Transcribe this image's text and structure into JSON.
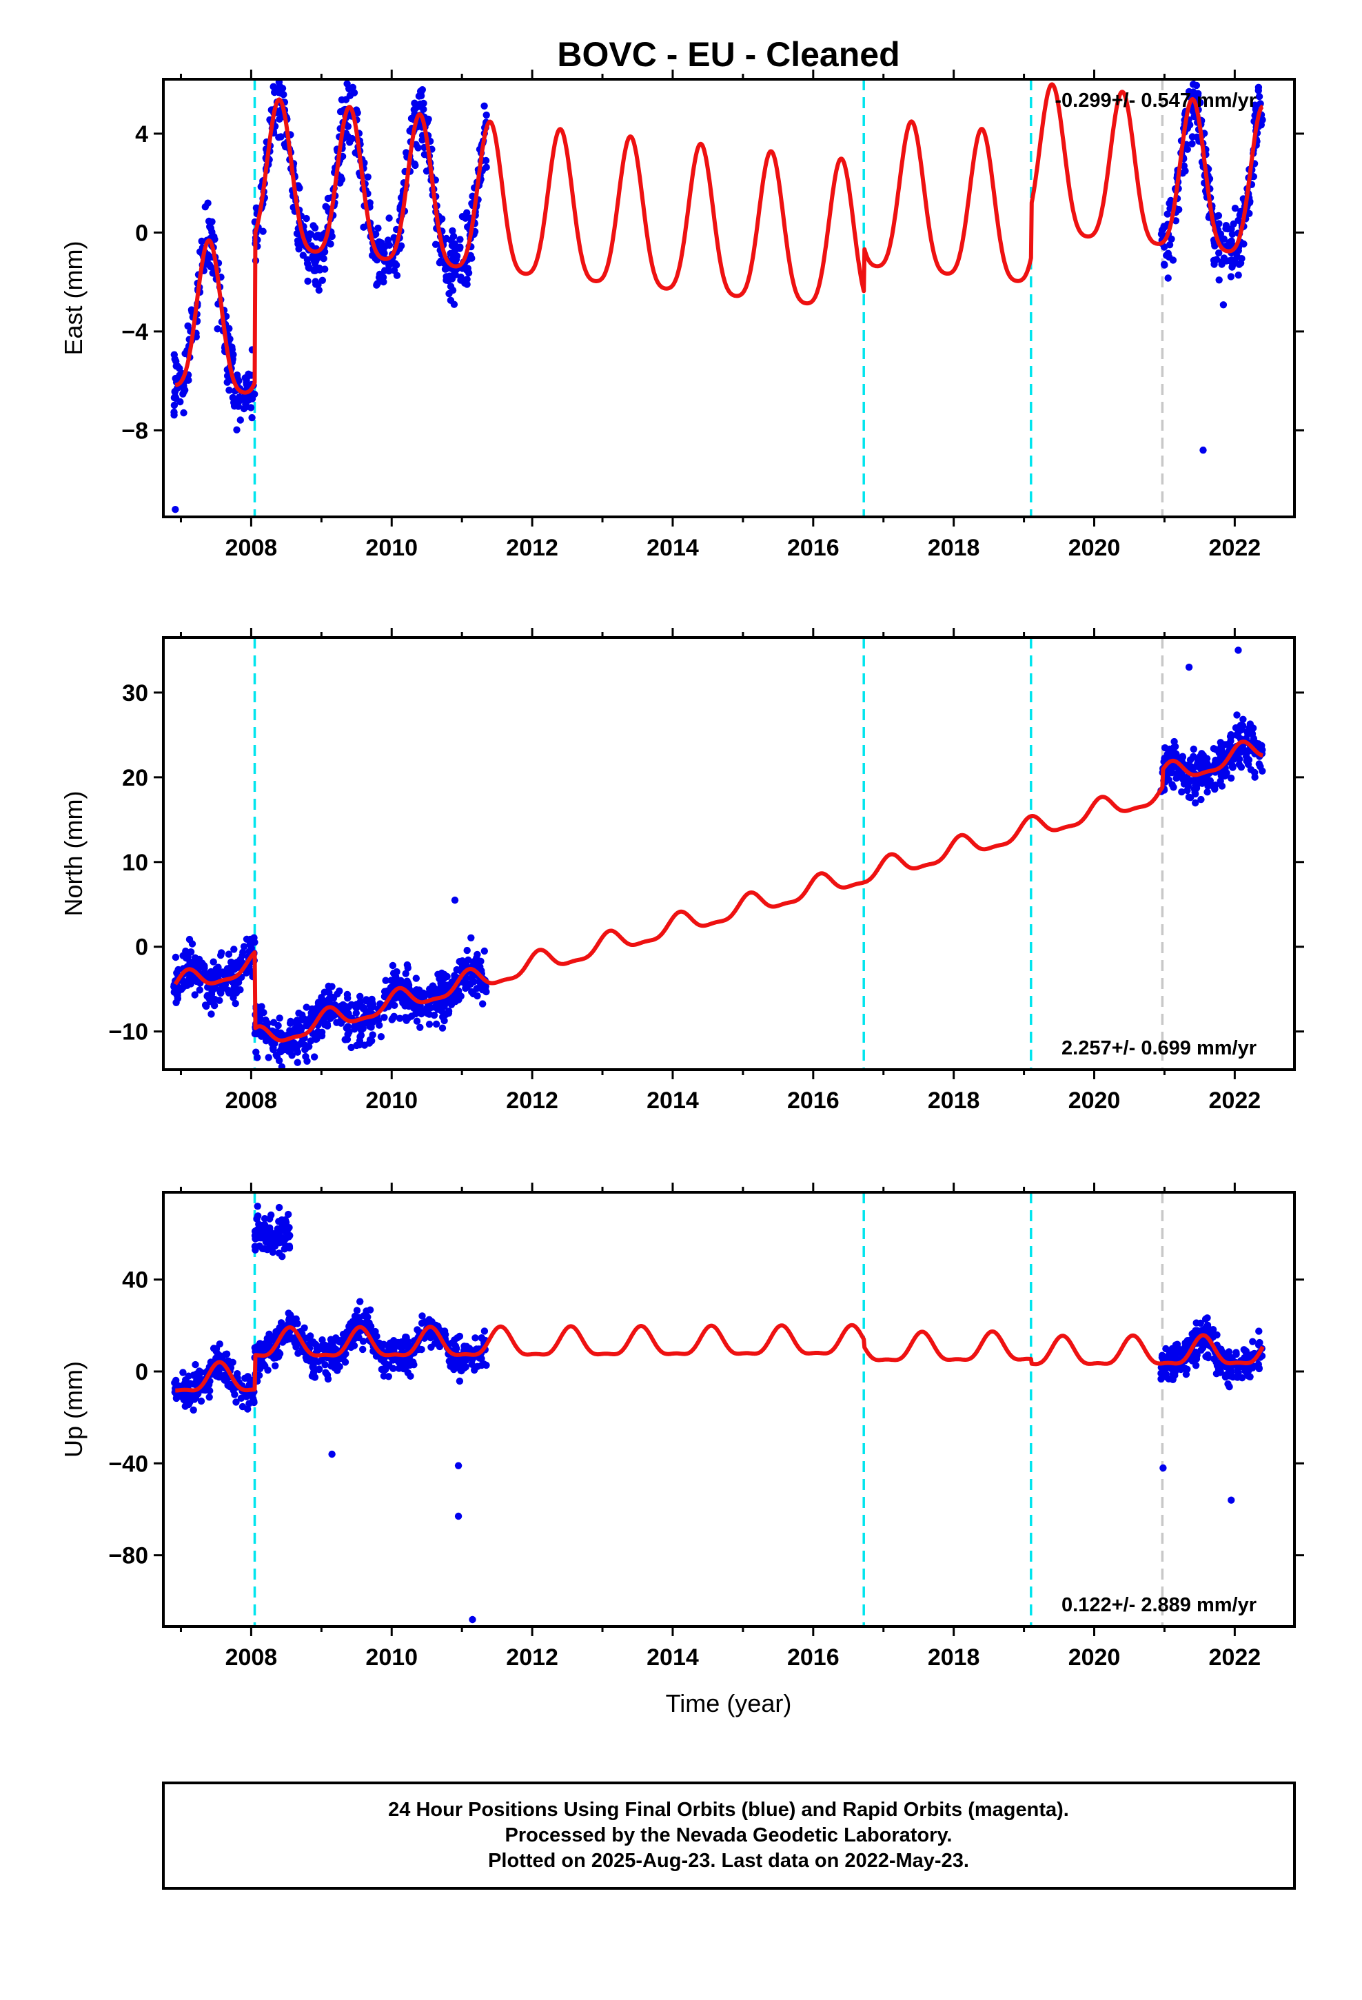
{
  "colors": {
    "points": "#0000ee",
    "model": "#ee1111",
    "equipment_change": "#00e5ee",
    "earthquake": "#c8c8c8",
    "frame": "#000000"
  },
  "chart_data": [
    {
      "type": "scatter",
      "title": "BOVC  - EU - Cleaned",
      "ylabel": "East (mm)",
      "xlabel": "",
      "xlim": [
        2006.75,
        2022.85
      ],
      "ylim": [
        -11.5,
        6.2
      ],
      "x_ticks": [
        2008,
        2010,
        2012,
        2014,
        2016,
        2018,
        2020,
        2022
      ],
      "y_ticks": [
        4,
        0,
        -4,
        -8
      ],
      "rate_label": "-0.299+/- 0.547 mm/yr",
      "rate_position": "top-right",
      "grid": false,
      "vlines_cyan": [
        2008.05,
        2016.72,
        2019.1
      ],
      "vlines_gray": [
        2020.97
      ],
      "data_segments": [
        [
          2006.9,
          2008.05
        ],
        [
          2008.05,
          2011.35
        ],
        [
          2020.95,
          2022.4
        ]
      ],
      "model": {
        "trend": [
          2007.0,
          -3.8,
          -0.299
        ],
        "annual_amp": 3.0,
        "phase_peak": 0.4,
        "semi_amp": 0.6,
        "offsets": [
          [
            2008.05,
            6.0
          ],
          [
            2016.72,
            1.8
          ],
          [
            2019.1,
            2.1
          ]
        ]
      },
      "scatter_sigma": 0.9,
      "outliers": [
        [
          2006.92,
          -11.2
        ],
        [
          2021.55,
          -8.8
        ],
        [
          2021.35,
          5.7
        ],
        [
          2022.35,
          5.5
        ]
      ]
    },
    {
      "type": "scatter",
      "title": "",
      "ylabel": "North (mm)",
      "xlabel": "",
      "xlim": [
        2006.75,
        2022.85
      ],
      "ylim": [
        -14.5,
        36.5
      ],
      "x_ticks": [
        2008,
        2010,
        2012,
        2014,
        2016,
        2018,
        2020,
        2022
      ],
      "y_ticks": [
        30,
        20,
        10,
        0,
        -10
      ],
      "rate_label": "2.257+/- 0.699 mm/yr",
      "rate_position": "bottom-right",
      "grid": false,
      "vlines_cyan": [
        2008.05,
        2016.72,
        2019.1
      ],
      "vlines_gray": [
        2020.97
      ],
      "data_segments": [
        [
          2006.9,
          2008.05
        ],
        [
          2008.05,
          2011.35
        ],
        [
          2020.95,
          2022.4
        ]
      ],
      "model": {
        "trend": [
          2007.0,
          -4.5,
          2.257
        ],
        "annual_amp": 1.2,
        "phase_peak": 0.1,
        "semi_amp": 0.4,
        "offsets": [
          [
            2008.05,
            -9.0
          ],
          [
            2020.97,
            2.0
          ]
        ]
      },
      "scatter_sigma": 1.8,
      "outliers": [
        [
          2021.35,
          33.0
        ],
        [
          2022.05,
          35.0
        ],
        [
          2008.9,
          -13.0
        ],
        [
          2010.9,
          5.5
        ]
      ]
    },
    {
      "type": "scatter",
      "title": "",
      "ylabel": "Up (mm)",
      "xlabel": "Time (year)",
      "xlim": [
        2006.75,
        2022.85
      ],
      "ylim": [
        -111,
        78
      ],
      "x_ticks": [
        2008,
        2010,
        2012,
        2014,
        2016,
        2018,
        2020,
        2022
      ],
      "y_ticks": [
        40,
        0,
        -40,
        -80
      ],
      "rate_label": "0.122+/- 2.889 mm/yr",
      "rate_position": "bottom-right",
      "grid": false,
      "vlines_cyan": [
        2008.05,
        2016.72,
        2019.1
      ],
      "vlines_gray": [
        2020.97
      ],
      "data_segments": [
        [
          2006.9,
          2008.05
        ],
        [
          2008.05,
          2011.35
        ],
        [
          2020.95,
          2022.4
        ]
      ],
      "model": {
        "trend": [
          2007.0,
          -4.0,
          0.122
        ],
        "annual_amp": 6.0,
        "phase_peak": 0.55,
        "semi_amp": 2.0,
        "offsets": [
          [
            2008.05,
            15.0
          ],
          [
            2016.72,
            -3.0
          ],
          [
            2019.1,
            -2.0
          ]
        ]
      },
      "scatter_sigma": 5.0,
      "cluster": {
        "x": [
          2008.05,
          2008.55
        ],
        "y_center": 60,
        "spread": 7
      },
      "outliers": [
        [
          2009.15,
          -36
        ],
        [
          2010.95,
          -41
        ],
        [
          2010.95,
          -63
        ],
        [
          2011.15,
          -108
        ],
        [
          2020.98,
          -42
        ],
        [
          2021.95,
          -56
        ]
      ]
    }
  ],
  "footer": {
    "line1": "24 Hour Positions Using Final Orbits (blue) and Rapid Orbits (magenta).",
    "line2": "Processed by the Nevada Geodetic Laboratory.",
    "line3": "Plotted on 2025-Aug-23. Last data on 2022-May-23."
  }
}
